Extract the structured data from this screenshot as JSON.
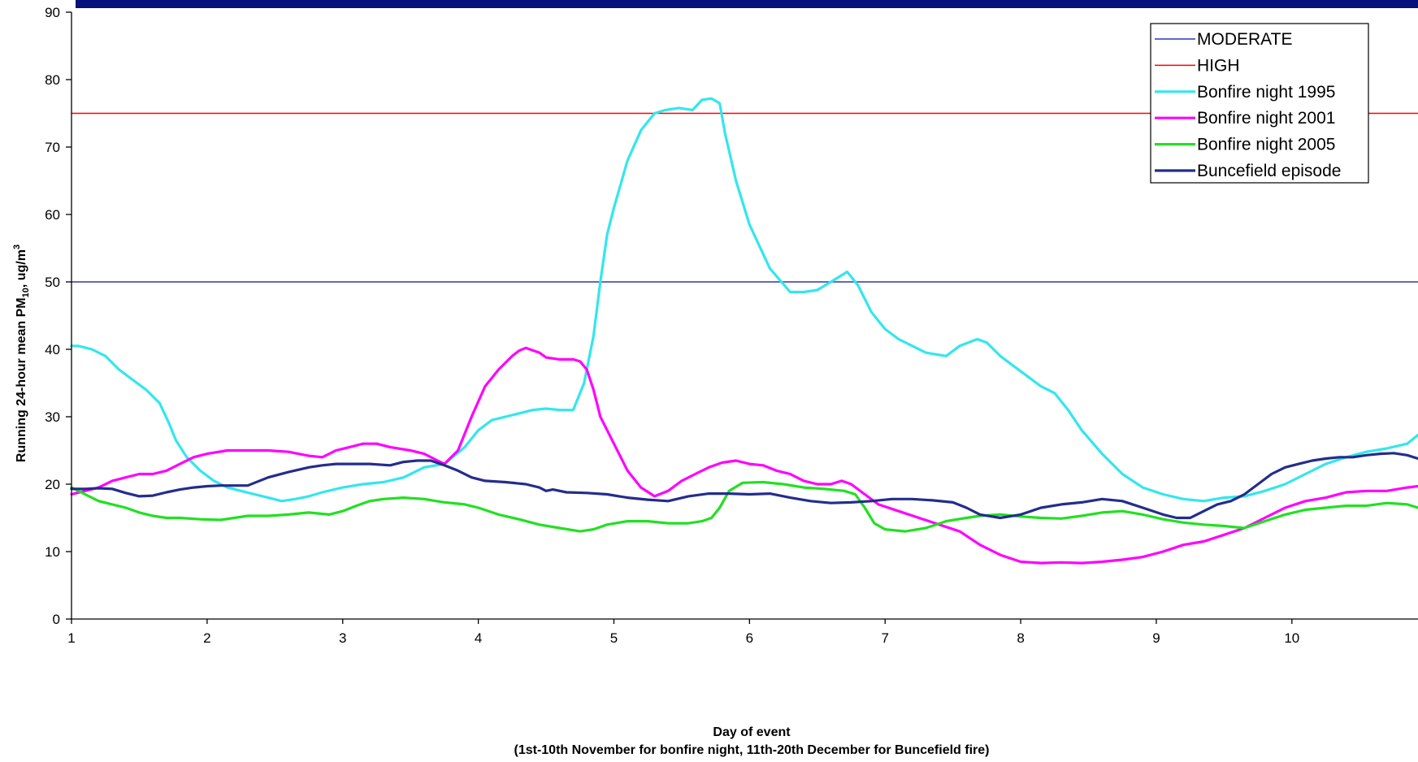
{
  "colors": {
    "top_bar": "#08107a",
    "axis": "#000000"
  },
  "chart_data": {
    "type": "line",
    "title": "",
    "xlabel": "Day of event",
    "xlabel_sub": "(1st-10th November for bonfire night, 11th-20th December for Buncefield fire)",
    "ylabel_parts": [
      "Running 24-hour mean PM",
      "10",
      ", ug/m",
      "3"
    ],
    "xlim": [
      1,
      10.93
    ],
    "ylim": [
      0,
      90
    ],
    "x_ticks": [
      1,
      2,
      3,
      4,
      5,
      6,
      7,
      8,
      9,
      10
    ],
    "y_ticks": [
      0,
      10,
      20,
      30,
      40,
      50,
      60,
      70,
      80,
      90
    ],
    "grid": false,
    "legend_position": "top-right",
    "series": [
      {
        "name": "MODERATE",
        "color": "#2b35b8",
        "style": "threshold",
        "x": [
          1,
          10.93
        ],
        "y": [
          50,
          50
        ]
      },
      {
        "name": "HIGH",
        "color": "#ff0000",
        "style": "threshold",
        "x": [
          1,
          10.93
        ],
        "y": [
          75,
          75
        ]
      },
      {
        "name": "Bonfire night 1995",
        "color": "#33e6ee",
        "style": "data",
        "x": [
          1.0,
          1.05,
          1.15,
          1.25,
          1.35,
          1.45,
          1.55,
          1.65,
          1.72,
          1.77,
          1.85,
          1.95,
          2.05,
          2.15,
          2.25,
          2.35,
          2.45,
          2.55,
          2.65,
          2.75,
          2.85,
          3.0,
          3.15,
          3.3,
          3.45,
          3.6,
          3.75,
          3.9,
          4.0,
          4.1,
          4.2,
          4.3,
          4.4,
          4.5,
          4.6,
          4.7,
          4.78,
          4.85,
          4.9,
          4.95,
          5.0,
          5.1,
          5.2,
          5.3,
          5.38,
          5.48,
          5.58,
          5.65,
          5.72,
          5.78,
          5.82,
          5.9,
          6.0,
          6.15,
          6.3,
          6.4,
          6.5,
          6.6,
          6.72,
          6.8,
          6.9,
          7.0,
          7.1,
          7.2,
          7.3,
          7.45,
          7.55,
          7.68,
          7.75,
          7.85,
          7.95,
          8.05,
          8.15,
          8.25,
          8.35,
          8.45,
          8.6,
          8.75,
          8.9,
          9.05,
          9.2,
          9.35,
          9.5,
          9.65,
          9.8,
          9.95,
          10.1,
          10.25,
          10.4,
          10.55,
          10.7,
          10.85,
          10.93
        ],
        "y": [
          40.5,
          40.5,
          40.0,
          39.0,
          37.0,
          35.5,
          34.0,
          32.0,
          29.0,
          26.5,
          24.0,
          22.0,
          20.5,
          19.5,
          19.0,
          18.5,
          18.0,
          17.5,
          17.8,
          18.2,
          18.8,
          19.5,
          20.0,
          20.3,
          21.0,
          22.5,
          23.0,
          25.5,
          28.0,
          29.5,
          30.0,
          30.5,
          31.0,
          31.2,
          31.0,
          31.0,
          35.0,
          42.0,
          50.0,
          57.0,
          61.0,
          68.0,
          72.5,
          75.0,
          75.5,
          75.8,
          75.5,
          77.0,
          77.2,
          76.5,
          72.0,
          65.0,
          58.5,
          52.0,
          48.5,
          48.5,
          48.8,
          50.0,
          51.5,
          49.5,
          45.5,
          43.0,
          41.5,
          40.5,
          39.5,
          39.0,
          40.5,
          41.5,
          41.0,
          39.0,
          37.5,
          36.0,
          34.5,
          33.5,
          31.0,
          28.0,
          24.5,
          21.5,
          19.5,
          18.5,
          17.8,
          17.5,
          18.0,
          18.2,
          19.0,
          20.0,
          21.5,
          23.0,
          24.0,
          24.8,
          25.3,
          26.0,
          27.3
        ]
      },
      {
        "name": "Bonfire night 2001",
        "color": "#ff00ff",
        "style": "data",
        "x": [
          1.0,
          1.1,
          1.2,
          1.3,
          1.4,
          1.5,
          1.6,
          1.7,
          1.8,
          1.9,
          2.0,
          2.15,
          2.3,
          2.45,
          2.6,
          2.75,
          2.85,
          2.95,
          3.05,
          3.15,
          3.25,
          3.35,
          3.5,
          3.6,
          3.7,
          3.75,
          3.85,
          3.95,
          4.05,
          4.15,
          4.25,
          4.3,
          4.35,
          4.45,
          4.5,
          4.6,
          4.7,
          4.75,
          4.8,
          4.85,
          4.9,
          5.0,
          5.1,
          5.2,
          5.3,
          5.4,
          5.5,
          5.6,
          5.7,
          5.8,
          5.9,
          6.0,
          6.1,
          6.2,
          6.3,
          6.4,
          6.5,
          6.6,
          6.68,
          6.75,
          6.85,
          6.95,
          7.1,
          7.25,
          7.4,
          7.55,
          7.7,
          7.85,
          8.0,
          8.15,
          8.3,
          8.45,
          8.6,
          8.75,
          8.9,
          9.05,
          9.2,
          9.35,
          9.5,
          9.65,
          9.8,
          9.95,
          10.1,
          10.25,
          10.4,
          10.55,
          10.7,
          10.85,
          10.93
        ],
        "y": [
          18.5,
          19.0,
          19.5,
          20.5,
          21.0,
          21.5,
          21.5,
          22.0,
          23.0,
          24.0,
          24.5,
          25.0,
          25.0,
          25.0,
          24.8,
          24.2,
          24.0,
          25.0,
          25.5,
          26.0,
          26.0,
          25.5,
          25.0,
          24.5,
          23.5,
          23.0,
          25.0,
          30.0,
          34.5,
          37.0,
          39.0,
          39.8,
          40.2,
          39.5,
          38.8,
          38.5,
          38.5,
          38.2,
          37.0,
          34.0,
          30.0,
          26.0,
          22.0,
          19.5,
          18.2,
          19.0,
          20.5,
          21.5,
          22.5,
          23.2,
          23.5,
          23.0,
          22.8,
          22.0,
          21.5,
          20.5,
          20.0,
          20.0,
          20.5,
          20.0,
          18.5,
          17.0,
          16.0,
          15.0,
          14.0,
          13.0,
          11.0,
          9.5,
          8.5,
          8.3,
          8.4,
          8.3,
          8.5,
          8.8,
          9.2,
          10.0,
          11.0,
          11.5,
          12.5,
          13.5,
          15.0,
          16.5,
          17.5,
          18.0,
          18.8,
          19.0,
          19.0,
          19.5,
          19.7
        ]
      },
      {
        "name": "Bonfire night 2005",
        "color": "#22e022",
        "style": "data",
        "x": [
          1.0,
          1.1,
          1.2,
          1.3,
          1.4,
          1.5,
          1.6,
          1.7,
          1.8,
          1.95,
          2.1,
          2.2,
          2.3,
          2.45,
          2.6,
          2.75,
          2.9,
          3.0,
          3.1,
          3.2,
          3.3,
          3.45,
          3.6,
          3.75,
          3.9,
          4.0,
          4.15,
          4.3,
          4.45,
          4.6,
          4.75,
          4.85,
          4.95,
          5.1,
          5.25,
          5.4,
          5.55,
          5.65,
          5.72,
          5.78,
          5.85,
          5.95,
          6.1,
          6.25,
          6.4,
          6.55,
          6.7,
          6.78,
          6.85,
          6.92,
          7.0,
          7.15,
          7.3,
          7.45,
          7.6,
          7.7,
          7.85,
          8.0,
          8.15,
          8.3,
          8.45,
          8.6,
          8.75,
          8.9,
          9.05,
          9.2,
          9.35,
          9.5,
          9.65,
          9.8,
          9.95,
          10.1,
          10.25,
          10.4,
          10.55,
          10.7,
          10.85,
          10.93
        ],
        "y": [
          19.5,
          18.5,
          17.5,
          17.0,
          16.5,
          15.8,
          15.3,
          15.0,
          15.0,
          14.8,
          14.7,
          15.0,
          15.3,
          15.3,
          15.5,
          15.8,
          15.5,
          16.0,
          16.8,
          17.5,
          17.8,
          18.0,
          17.8,
          17.3,
          17.0,
          16.5,
          15.5,
          14.8,
          14.0,
          13.5,
          13.0,
          13.3,
          14.0,
          14.5,
          14.5,
          14.2,
          14.2,
          14.5,
          15.0,
          16.5,
          19.0,
          20.2,
          20.3,
          20.0,
          19.5,
          19.3,
          19.0,
          18.5,
          16.5,
          14.2,
          13.3,
          13.0,
          13.5,
          14.5,
          15.0,
          15.3,
          15.5,
          15.2,
          15.0,
          14.9,
          15.3,
          15.8,
          16.0,
          15.5,
          14.8,
          14.3,
          14.0,
          13.8,
          13.5,
          14.5,
          15.5,
          16.2,
          16.5,
          16.8,
          16.8,
          17.2,
          17.0,
          16.5
        ]
      },
      {
        "name": "Buncefield episode",
        "color": "#232d8c",
        "style": "data",
        "x": [
          1.0,
          1.1,
          1.2,
          1.3,
          1.4,
          1.5,
          1.6,
          1.7,
          1.8,
          1.9,
          2.0,
          2.1,
          2.2,
          2.3,
          2.45,
          2.6,
          2.75,
          2.85,
          2.95,
          3.05,
          3.2,
          3.35,
          3.45,
          3.55,
          3.65,
          3.75,
          3.85,
          3.95,
          4.05,
          4.2,
          4.35,
          4.45,
          4.5,
          4.55,
          4.65,
          4.8,
          4.95,
          5.1,
          5.25,
          5.4,
          5.55,
          5.7,
          5.85,
          6.0,
          6.15,
          6.3,
          6.45,
          6.6,
          6.75,
          6.9,
          7.05,
          7.2,
          7.35,
          7.5,
          7.6,
          7.7,
          7.85,
          8.0,
          8.15,
          8.3,
          8.45,
          8.6,
          8.75,
          8.9,
          9.05,
          9.15,
          9.25,
          9.35,
          9.45,
          9.55,
          9.65,
          9.75,
          9.85,
          9.95,
          10.05,
          10.15,
          10.25,
          10.35,
          10.45,
          10.55,
          10.65,
          10.75,
          10.85,
          10.93
        ],
        "y": [
          19.3,
          19.3,
          19.4,
          19.3,
          18.7,
          18.2,
          18.3,
          18.8,
          19.2,
          19.5,
          19.7,
          19.8,
          19.8,
          19.8,
          21.0,
          21.8,
          22.5,
          22.8,
          23.0,
          23.0,
          23.0,
          22.8,
          23.3,
          23.5,
          23.5,
          22.8,
          22.0,
          21.0,
          20.5,
          20.3,
          20.0,
          19.5,
          19.0,
          19.2,
          18.8,
          18.7,
          18.5,
          18.0,
          17.7,
          17.5,
          18.2,
          18.6,
          18.6,
          18.5,
          18.6,
          18.0,
          17.5,
          17.2,
          17.3,
          17.5,
          17.8,
          17.8,
          17.6,
          17.3,
          16.5,
          15.5,
          15.0,
          15.5,
          16.5,
          17.0,
          17.3,
          17.8,
          17.5,
          16.5,
          15.5,
          15.0,
          15.0,
          16.0,
          17.0,
          17.5,
          18.5,
          20.0,
          21.5,
          22.5,
          23.0,
          23.5,
          23.8,
          24.0,
          24.0,
          24.3,
          24.5,
          24.6,
          24.3,
          23.8
        ]
      }
    ]
  }
}
